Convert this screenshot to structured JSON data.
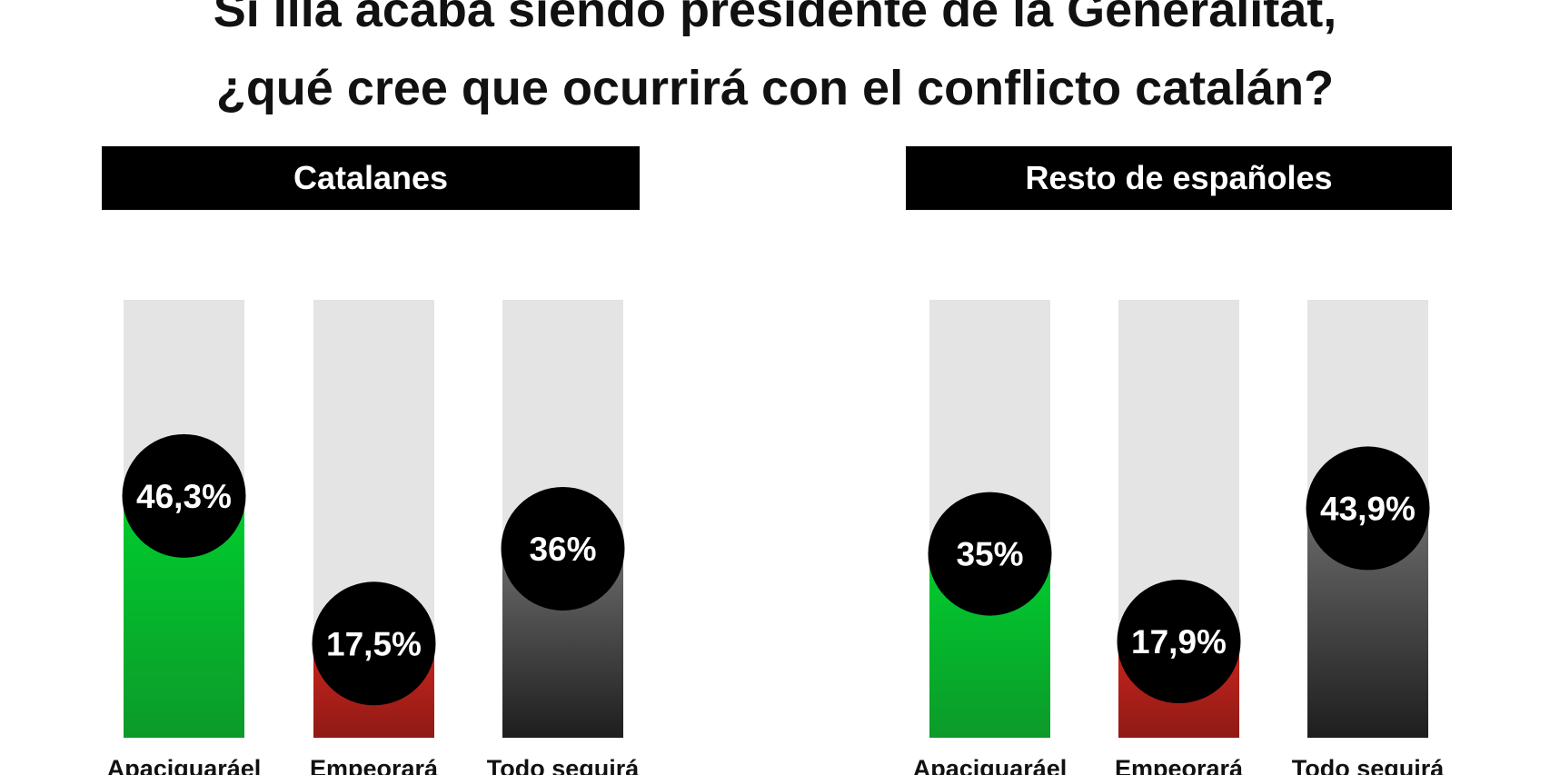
{
  "title": {
    "line1": "Si Illa acaba siendo presidente de la Generalitat,",
    "line2": "¿qué cree que ocurrirá con el conflicto catalán?"
  },
  "colors": {
    "green": "#00c82c",
    "red": "#b51f1a",
    "gray": "#4a4a4a",
    "track": "#e4e4e4",
    "header": "#000000",
    "bubble": "#000000"
  },
  "chart_data": [
    {
      "type": "bar",
      "title": "Catalanes",
      "categories": [
        "Apaciguaráel",
        "Empeorará",
        "Todo seguirá"
      ],
      "values": [
        46.3,
        17.5,
        36
      ],
      "value_labels": [
        "46,3%",
        "17,5%",
        "36%"
      ],
      "ylim": [
        0,
        50
      ]
    },
    {
      "type": "bar",
      "title": "Resto de españoles",
      "categories": [
        "Apaciguaráel",
        "Empeorará",
        "Todo seguirá"
      ],
      "values": [
        35,
        17.9,
        43.9
      ],
      "value_labels": [
        "35%",
        "17,9%",
        "43,9%"
      ],
      "ylim": [
        0,
        50
      ]
    }
  ]
}
